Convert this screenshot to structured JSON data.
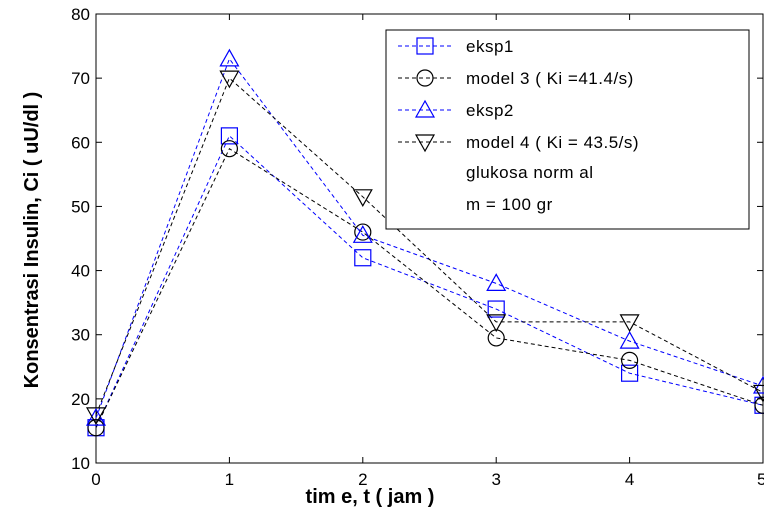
{
  "chart_data": {
    "type": "line",
    "xlabel": "tim e, t ( jam )",
    "ylabel": "Konsentrasi Insulin, Ci ( uU/dl )",
    "xlim": [
      0,
      5
    ],
    "ylim": [
      10,
      80
    ],
    "x_ticks": [
      "0",
      "1",
      "2",
      "3",
      "4",
      "5"
    ],
    "y_ticks": [
      "10",
      "20",
      "30",
      "40",
      "50",
      "60",
      "70",
      "80"
    ],
    "grid": false,
    "legend_position": "top-right",
    "x": [
      0,
      1,
      2,
      3,
      4,
      5
    ],
    "series": [
      {
        "name": "eksp1",
        "marker": "square",
        "color": "#0000ff",
        "values": [
          15.5,
          61,
          42,
          34,
          24,
          19
        ]
      },
      {
        "name": "model 3 ( Ki =41.4/s)",
        "marker": "circle",
        "color": "#000000",
        "values": [
          15.5,
          59,
          46,
          29.5,
          26,
          19
        ]
      },
      {
        "name": "eksp2",
        "marker": "triangle-up",
        "color": "#0000ff",
        "values": [
          17,
          73,
          45.5,
          38,
          29,
          22
        ]
      },
      {
        "name": "model 4 ( Ki = 43.5/s)",
        "marker": "triangle-down",
        "color": "#000000",
        "values": [
          17.5,
          70,
          51.5,
          32,
          32,
          21
        ]
      }
    ],
    "legend_notes": [
      "glukosa norm al",
      "m  = 100 gr"
    ]
  }
}
